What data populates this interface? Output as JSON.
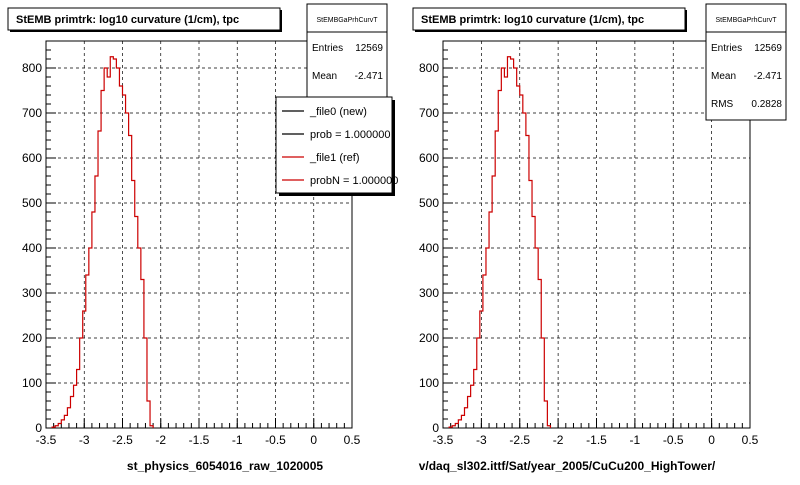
{
  "chart_data": [
    {
      "type": "histogram",
      "title": "StEMB primtrk: log10 curvature (1/cm), tpc",
      "xlabel": "st_physics_6054016_raw_1020005",
      "ylabel": "",
      "xlim": [
        -3.5,
        0.5
      ],
      "ylim": [
        0,
        860
      ],
      "grid": true,
      "x_ticks": [
        "-3.5",
        "-3",
        "-2.5",
        "-2",
        "-1.5",
        "-1",
        "-0.5",
        "0",
        "0.5"
      ],
      "y_ticks": [
        "0",
        "100",
        "200",
        "300",
        "400",
        "500",
        "600",
        "700",
        "800"
      ],
      "stats": {
        "name": "StEMBGaPrhCurvT",
        "rows": [
          {
            "label": "Entries",
            "value": "12569"
          },
          {
            "label": "Mean",
            "value": "-2.471"
          }
        ]
      },
      "legend": {
        "placement": "right",
        "entries": [
          {
            "label": "_file0 (new)",
            "color": "#000000"
          },
          {
            "label": "prob = 1.000000",
            "color": "#000000"
          },
          {
            "label": "_file1 (ref)",
            "color": "#cc0000"
          },
          {
            "label": "probN = 1.000000",
            "color": "#cc0000"
          }
        ]
      },
      "series": [
        {
          "color": "#cc0000",
          "bin_width": 0.04,
          "x_start": -3.42,
          "values": [
            2,
            5,
            10,
            18,
            28,
            45,
            70,
            95,
            130,
            200,
            260,
            340,
            400,
            480,
            560,
            660,
            750,
            800,
            780,
            825,
            820,
            800,
            760,
            740,
            700,
            650,
            550,
            470,
            400,
            330,
            200,
            60,
            5
          ]
        }
      ]
    },
    {
      "type": "histogram",
      "title": "StEMB primtrk: log10 curvature (1/cm), tpc",
      "xlabel": "v/daq_sl302.ittf/Sat/year_2005/CuCu200_HighTower/",
      "ylabel": "",
      "xlim": [
        -3.5,
        0.5
      ],
      "ylim": [
        0,
        860
      ],
      "grid": true,
      "x_ticks": [
        "-3.5",
        "-3",
        "-2.5",
        "-2",
        "-1.5",
        "-1",
        "-0.5",
        "0",
        "0.5"
      ],
      "y_ticks": [
        "0",
        "100",
        "200",
        "300",
        "400",
        "500",
        "600",
        "700",
        "800"
      ],
      "stats": {
        "name": "StEMBGaPrhCurvT",
        "rows": [
          {
            "label": "Entries",
            "value": "12569"
          },
          {
            "label": "Mean",
            "value": "-2.471"
          },
          {
            "label": "RMS",
            "value": "0.2828"
          }
        ]
      },
      "series": [
        {
          "color": "#cc0000",
          "bin_width": 0.04,
          "x_start": -3.42,
          "values": [
            2,
            5,
            10,
            18,
            28,
            45,
            70,
            95,
            130,
            200,
            260,
            340,
            400,
            480,
            560,
            660,
            750,
            800,
            780,
            825,
            820,
            800,
            760,
            740,
            700,
            650,
            550,
            470,
            400,
            330,
            200,
            60,
            5
          ]
        }
      ]
    }
  ]
}
